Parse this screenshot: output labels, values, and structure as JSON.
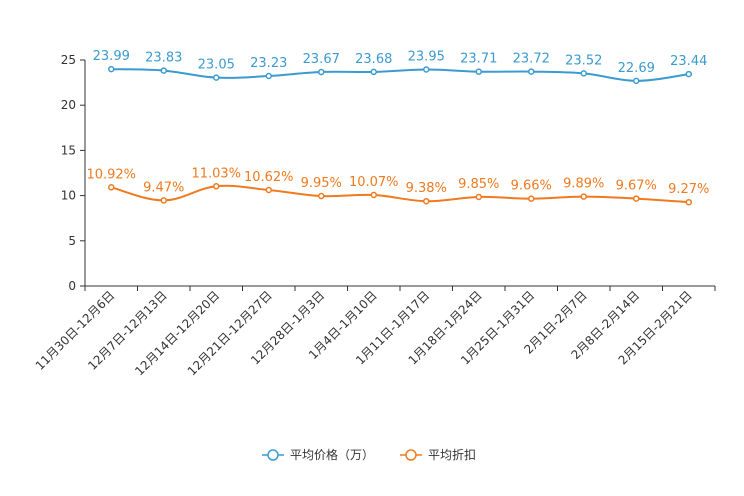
{
  "chart_data": {
    "type": "line",
    "title": "",
    "xlabel": "",
    "ylabel": "",
    "ylim": [
      0,
      25
    ],
    "yticks": [
      0,
      5,
      10,
      15,
      20,
      25
    ],
    "grid": false,
    "legend_position": "bottom-center",
    "categories": [
      "11月30日-12月6日",
      "12月7日-12月13日",
      "12月14日-12月20日",
      "12月21日-12月27日",
      "12月28日-1月3日",
      "1月4日-1月10日",
      "1月11日-1月17日",
      "1月18日-1月24日",
      "1月25日-1月31日",
      "2月1日-2月7日",
      "2月8日-2月14日",
      "2月15日-2月21日"
    ],
    "series": [
      {
        "name": "平均价格（万）",
        "color": "#3A9BD0",
        "values": [
          23.99,
          23.83,
          23.05,
          23.23,
          23.67,
          23.68,
          23.95,
          23.71,
          23.72,
          23.52,
          22.69,
          23.44
        ],
        "labels": [
          "23.99",
          "23.83",
          "23.05",
          "23.23",
          "23.67",
          "23.68",
          "23.95",
          "23.71",
          "23.72",
          "23.52",
          "22.69",
          "23.44"
        ]
      },
      {
        "name": "平均折扣",
        "color": "#F07A20",
        "values": [
          10.92,
          9.47,
          11.03,
          10.62,
          9.95,
          10.07,
          9.38,
          9.85,
          9.66,
          9.89,
          9.67,
          9.27
        ],
        "labels": [
          "10.92%",
          "9.47%",
          "11.03%",
          "10.62%",
          "9.95%",
          "10.07%",
          "9.38%",
          "9.85%",
          "9.66%",
          "9.89%",
          "9.67%",
          "9.27%"
        ]
      }
    ]
  }
}
